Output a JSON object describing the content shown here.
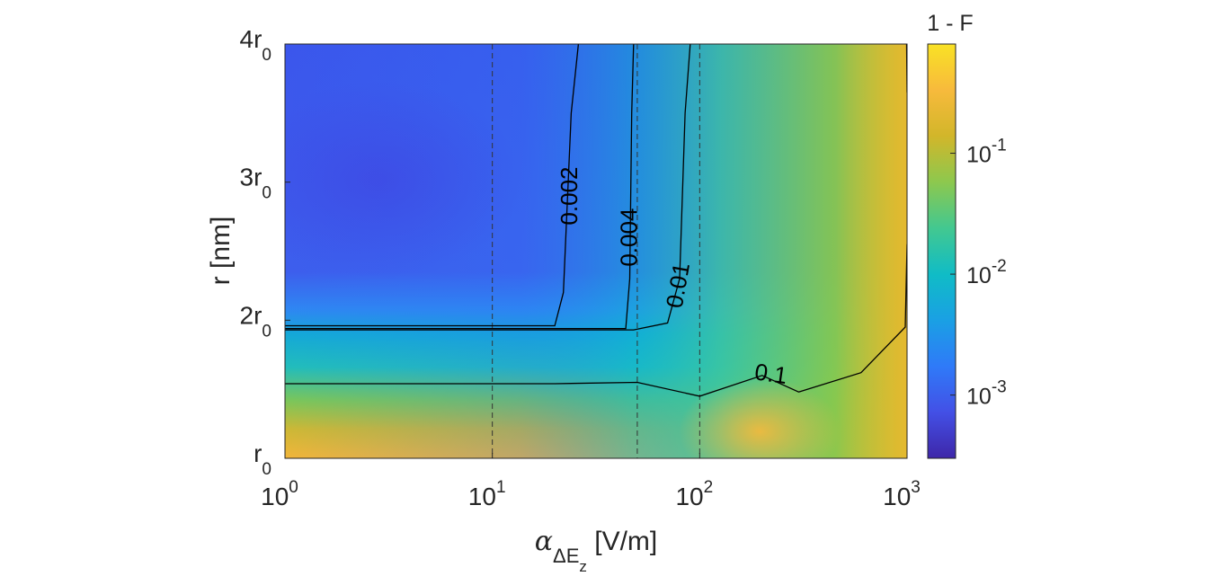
{
  "chart_data": {
    "type": "heatmap",
    "title": "",
    "xlabel": {
      "symbol": "α",
      "subscript": "ΔE",
      "subsub": "z",
      "unit": "[V/m]"
    },
    "ylabel": "r [nm]",
    "x_scale": "log",
    "xlim": [
      1,
      1000
    ],
    "x_ticks": [
      {
        "base": "10",
        "exp": "0"
      },
      {
        "base": "10",
        "exp": "1"
      },
      {
        "base": "10",
        "exp": "2"
      },
      {
        "base": "10",
        "exp": "3"
      }
    ],
    "y_ticks": [
      {
        "coef": "",
        "sym": "r",
        "sub": "0"
      },
      {
        "coef": "2",
        "sym": "r",
        "sub": "0"
      },
      {
        "coef": "3",
        "sym": "r",
        "sub": "0"
      },
      {
        "coef": "4",
        "sym": "r",
        "sub": "0"
      }
    ],
    "vertical_reference_lines_x": [
      10,
      50,
      100
    ],
    "colorbar": {
      "title": "1 - F",
      "scale": "log",
      "range": [
        0.0003,
        0.8
      ],
      "ticks": [
        {
          "base": "10",
          "exp": "-3"
        },
        {
          "base": "10",
          "exp": "-2"
        },
        {
          "base": "10",
          "exp": "-1"
        }
      ],
      "colormap": [
        "#3e26a8",
        "#4350e6",
        "#2f7af8",
        "#1aa0e4",
        "#10bcc6",
        "#43c890",
        "#8dc84e",
        "#d2b62a",
        "#f7ba3c",
        "#f9e225"
      ]
    },
    "contours": [
      {
        "level": 0.002,
        "label": "0.002",
        "points": [
          [
            1,
            1.96
          ],
          [
            20,
            1.96
          ],
          [
            22,
            2.2
          ],
          [
            24,
            3.5
          ],
          [
            26,
            4.0
          ]
        ]
      },
      {
        "level": 0.004,
        "label": "0.004",
        "points": [
          [
            1,
            1.94
          ],
          [
            44,
            1.94
          ],
          [
            46,
            2.3
          ],
          [
            47,
            3.5
          ],
          [
            48,
            4.0
          ]
        ]
      },
      {
        "level": 0.01,
        "label": "0.01",
        "points": [
          [
            1,
            1.93
          ],
          [
            48,
            1.93
          ],
          [
            70,
            1.98
          ],
          [
            80,
            2.3
          ],
          [
            85,
            3.5
          ],
          [
            90,
            4.0
          ]
        ]
      },
      {
        "level": 0.1,
        "label": "0.1",
        "points": [
          [
            1,
            1.54
          ],
          [
            20,
            1.54
          ],
          [
            50,
            1.55
          ],
          [
            100,
            1.45
          ],
          [
            200,
            1.6
          ],
          [
            300,
            1.48
          ],
          [
            600,
            1.62
          ],
          [
            980,
            1.95
          ],
          [
            1000,
            2.55
          ]
        ]
      },
      {
        "level": 0.5,
        "label": "",
        "points": [
          [
            995,
            4.0
          ],
          [
            1000,
            3.65
          ]
        ]
      }
    ]
  }
}
